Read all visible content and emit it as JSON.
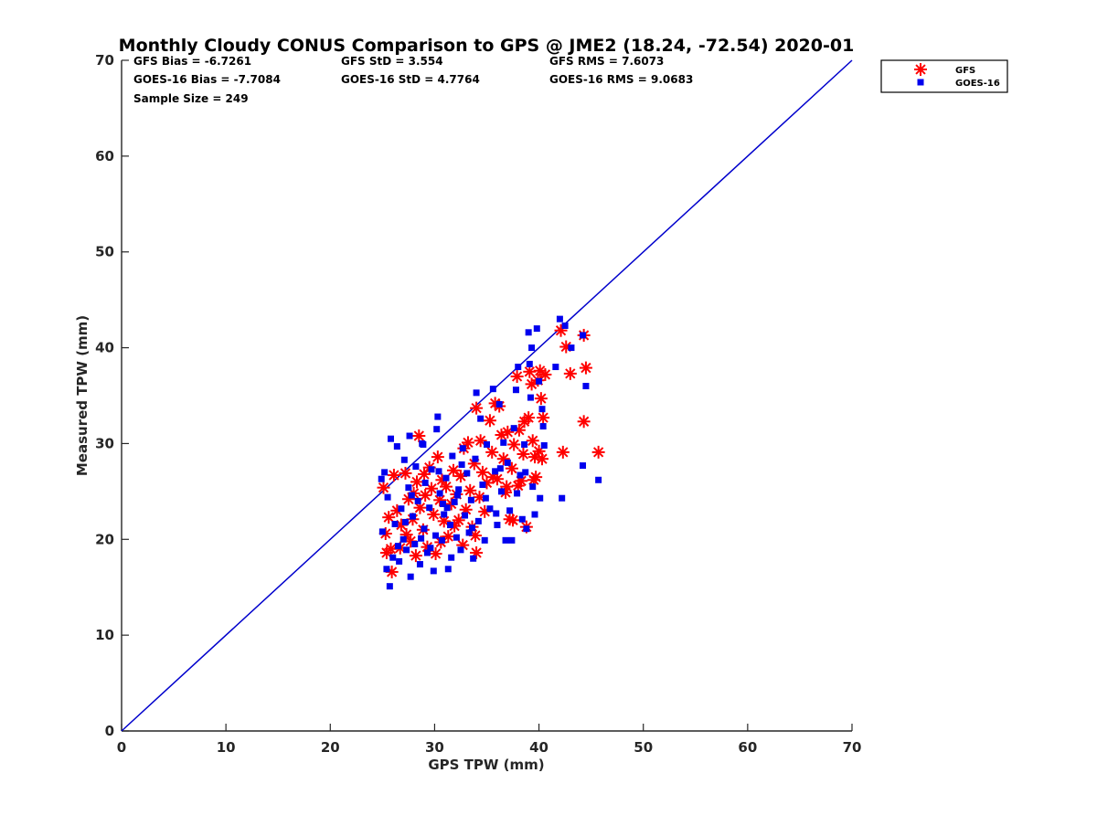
{
  "chart_data": {
    "type": "scatter",
    "title": "Monthly Cloudy CONUS Comparison to GPS @ JME2 (18.24, -72.54) 2020-01",
    "xlabel": "GPS TPW (mm)",
    "ylabel": "Measured TPW (mm)",
    "xlim": [
      0,
      70
    ],
    "ylim": [
      0,
      70
    ],
    "xticks": [
      "0",
      "10",
      "20",
      "30",
      "40",
      "50",
      "60",
      "70"
    ],
    "yticks": [
      "0",
      "10",
      "20",
      "30",
      "40",
      "50",
      "60",
      "70"
    ],
    "grid": false,
    "legend_position": "top-right",
    "reference_line": {
      "x": [
        0,
        70
      ],
      "y": [
        0,
        70
      ],
      "color": "#0000cc"
    },
    "stats": [
      [
        "GFS Bias = -6.7261",
        "GFS StD = 3.554",
        "GFS RMS = 7.6073"
      ],
      [
        "GOES-16 Bias = -7.7084",
        "GOES-16 StD = 4.7764",
        "GOES-16 RMS = 9.0683"
      ],
      [
        "Sample Size = 249",
        "",
        ""
      ]
    ],
    "series": [
      {
        "name": "GFS",
        "marker": "asterisk",
        "color": "#ff0000",
        "points": [
          [
            25.1,
            25.4
          ],
          [
            25.3,
            20.6
          ],
          [
            25.4,
            18.6
          ],
          [
            25.8,
            19.0
          ],
          [
            25.9,
            16.6
          ],
          [
            25.6,
            22.3
          ],
          [
            26.1,
            26.7
          ],
          [
            26.4,
            23.0
          ],
          [
            26.8,
            21.5
          ],
          [
            27.2,
            26.9
          ],
          [
            27.5,
            24.2
          ],
          [
            27.7,
            19.8
          ],
          [
            27.9,
            22.1
          ],
          [
            28.0,
            24.8
          ],
          [
            28.3,
            26.0
          ],
          [
            28.5,
            30.8
          ],
          [
            28.6,
            23.3
          ],
          [
            28.9,
            21.0
          ],
          [
            29.1,
            24.6
          ],
          [
            29.3,
            19.2
          ],
          [
            29.5,
            27.5
          ],
          [
            29.7,
            25.3
          ],
          [
            29.9,
            22.6
          ],
          [
            30.1,
            18.5
          ],
          [
            30.3,
            28.6
          ],
          [
            30.5,
            24.1
          ],
          [
            30.7,
            26.2
          ],
          [
            30.9,
            21.9
          ],
          [
            31.1,
            25.5
          ],
          [
            31.3,
            20.3
          ],
          [
            31.6,
            23.7
          ],
          [
            31.8,
            27.2
          ],
          [
            32.1,
            24.7
          ],
          [
            32.3,
            22.0
          ],
          [
            32.5,
            26.6
          ],
          [
            32.8,
            29.5
          ],
          [
            33.0,
            23.1
          ],
          [
            33.2,
            30.1
          ],
          [
            33.4,
            25.1
          ],
          [
            33.6,
            21.3
          ],
          [
            33.8,
            27.9
          ],
          [
            34.0,
            18.6
          ],
          [
            34.0,
            33.7
          ],
          [
            34.3,
            24.4
          ],
          [
            34.4,
            30.3
          ],
          [
            34.6,
            27.0
          ],
          [
            34.8,
            22.9
          ],
          [
            35.0,
            25.9
          ],
          [
            35.3,
            32.4
          ],
          [
            35.5,
            29.1
          ],
          [
            35.8,
            34.2
          ],
          [
            36.0,
            26.3
          ],
          [
            36.2,
            33.9
          ],
          [
            36.4,
            30.9
          ],
          [
            36.6,
            28.4
          ],
          [
            36.8,
            24.9
          ],
          [
            37.0,
            31.2
          ],
          [
            37.2,
            22.1
          ],
          [
            37.4,
            27.4
          ],
          [
            37.6,
            29.9
          ],
          [
            37.9,
            37.0
          ],
          [
            38.1,
            31.4
          ],
          [
            38.3,
            26.1
          ],
          [
            38.5,
            28.9
          ],
          [
            38.6,
            32.3
          ],
          [
            38.8,
            21.3
          ],
          [
            39.0,
            32.7
          ],
          [
            39.1,
            37.5
          ],
          [
            39.3,
            36.2
          ],
          [
            39.4,
            30.3
          ],
          [
            39.6,
            28.6
          ],
          [
            39.7,
            26.5
          ],
          [
            39.9,
            36.6
          ],
          [
            40.0,
            29.2
          ],
          [
            40.1,
            37.6
          ],
          [
            40.2,
            34.7
          ],
          [
            40.3,
            28.4
          ],
          [
            40.4,
            32.7
          ],
          [
            40.6,
            37.2
          ],
          [
            42.1,
            41.8
          ],
          [
            42.3,
            29.1
          ],
          [
            42.6,
            40.1
          ],
          [
            43.0,
            37.3
          ],
          [
            44.3,
            41.3
          ],
          [
            44.3,
            32.3
          ],
          [
            44.5,
            37.9
          ],
          [
            45.7,
            29.1
          ],
          [
            26.7,
            19.1
          ],
          [
            27.3,
            20.5
          ],
          [
            28.2,
            18.3
          ],
          [
            29.0,
            26.8
          ],
          [
            30.6,
            19.7
          ],
          [
            31.9,
            21.4
          ],
          [
            32.7,
            19.4
          ],
          [
            33.9,
            20.4
          ],
          [
            35.6,
            26.5
          ],
          [
            36.9,
            25.5
          ],
          [
            37.5,
            22.0
          ],
          [
            38.0,
            25.6
          ],
          [
            39.5,
            26.2
          ]
        ]
      },
      {
        "name": "GOES-16",
        "marker": "square",
        "color": "#0000ee",
        "points": [
          [
            24.9,
            26.3
          ],
          [
            25.0,
            20.8
          ],
          [
            25.2,
            27.0
          ],
          [
            25.4,
            16.9
          ],
          [
            25.5,
            24.4
          ],
          [
            25.7,
            15.1
          ],
          [
            25.8,
            30.5
          ],
          [
            26.0,
            18.1
          ],
          [
            26.2,
            21.6
          ],
          [
            26.4,
            29.7
          ],
          [
            26.6,
            17.7
          ],
          [
            26.8,
            23.2
          ],
          [
            27.0,
            20.0
          ],
          [
            27.1,
            28.3
          ],
          [
            27.3,
            18.9
          ],
          [
            27.5,
            25.4
          ],
          [
            27.6,
            30.8
          ],
          [
            27.7,
            16.1
          ],
          [
            27.9,
            22.4
          ],
          [
            28.1,
            19.5
          ],
          [
            28.2,
            27.6
          ],
          [
            28.4,
            24.0
          ],
          [
            28.6,
            17.4
          ],
          [
            28.8,
            30.0
          ],
          [
            29.0,
            21.1
          ],
          [
            29.1,
            25.9
          ],
          [
            29.3,
            18.6
          ],
          [
            29.5,
            23.3
          ],
          [
            29.7,
            27.3
          ],
          [
            29.9,
            16.7
          ],
          [
            30.1,
            20.4
          ],
          [
            30.2,
            31.5
          ],
          [
            30.3,
            32.8
          ],
          [
            30.5,
            24.8
          ],
          [
            30.7,
            19.9
          ],
          [
            30.9,
            22.6
          ],
          [
            31.1,
            26.4
          ],
          [
            31.3,
            16.9
          ],
          [
            31.5,
            21.5
          ],
          [
            31.7,
            28.7
          ],
          [
            31.9,
            23.9
          ],
          [
            32.1,
            20.2
          ],
          [
            32.3,
            25.2
          ],
          [
            32.5,
            18.9
          ],
          [
            32.7,
            29.5
          ],
          [
            32.9,
            22.5
          ],
          [
            33.1,
            26.9
          ],
          [
            33.3,
            20.7
          ],
          [
            33.5,
            24.1
          ],
          [
            33.7,
            18.0
          ],
          [
            33.9,
            28.4
          ],
          [
            34.0,
            35.3
          ],
          [
            34.2,
            21.9
          ],
          [
            34.4,
            32.6
          ],
          [
            34.6,
            25.7
          ],
          [
            34.8,
            19.9
          ],
          [
            35.0,
            29.9
          ],
          [
            35.3,
            23.2
          ],
          [
            35.6,
            35.7
          ],
          [
            35.8,
            27.1
          ],
          [
            36.0,
            21.5
          ],
          [
            36.2,
            34.1
          ],
          [
            36.4,
            25.0
          ],
          [
            36.6,
            30.1
          ],
          [
            36.8,
            19.9
          ],
          [
            37.0,
            28.0
          ],
          [
            37.2,
            23.0
          ],
          [
            37.4,
            19.9
          ],
          [
            37.6,
            31.6
          ],
          [
            37.8,
            35.6
          ],
          [
            38.0,
            38.0
          ],
          [
            38.2,
            26.7
          ],
          [
            38.4,
            22.1
          ],
          [
            38.6,
            29.9
          ],
          [
            38.8,
            21.1
          ],
          [
            39.0,
            41.6
          ],
          [
            39.1,
            38.3
          ],
          [
            39.3,
            40.0
          ],
          [
            39.4,
            25.5
          ],
          [
            39.6,
            22.6
          ],
          [
            39.8,
            42.0
          ],
          [
            40.0,
            36.5
          ],
          [
            40.1,
            24.3
          ],
          [
            40.3,
            33.6
          ],
          [
            40.5,
            29.8
          ],
          [
            41.6,
            38.0
          ],
          [
            42.0,
            43.0
          ],
          [
            42.5,
            42.3
          ],
          [
            42.2,
            24.3
          ],
          [
            43.1,
            40.0
          ],
          [
            44.2,
            41.3
          ],
          [
            44.2,
            27.7
          ],
          [
            44.5,
            36.0
          ],
          [
            45.7,
            26.2
          ],
          [
            26.5,
            19.3
          ],
          [
            27.2,
            21.8
          ],
          [
            28.7,
            20.1
          ],
          [
            29.6,
            19.1
          ],
          [
            30.8,
            23.7
          ],
          [
            31.6,
            18.1
          ],
          [
            32.6,
            27.8
          ],
          [
            33.6,
            21.2
          ],
          [
            34.9,
            24.3
          ],
          [
            35.9,
            22.7
          ],
          [
            36.3,
            27.4
          ],
          [
            37.9,
            24.8
          ],
          [
            38.7,
            27.0
          ],
          [
            39.2,
            34.8
          ],
          [
            40.4,
            31.8
          ],
          [
            27.8,
            24.6
          ],
          [
            28.9,
            29.9
          ],
          [
            30.4,
            27.1
          ],
          [
            31.2,
            23.3
          ],
          [
            32.2,
            24.6
          ]
        ]
      }
    ]
  }
}
